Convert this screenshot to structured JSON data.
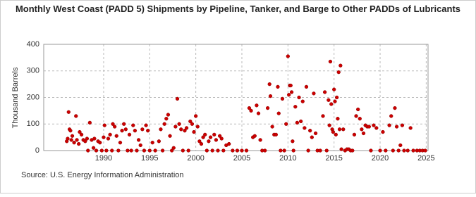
{
  "chart_data": {
    "type": "scatter",
    "title": "Monthly West Coast (PADD 5) Shipments by Pipeline, Tanker, and Barge to Other PADDs of Lubricants",
    "y_label": "Thousand Barrels",
    "source": "Source: U.S. Energy Information Administration",
    "xlim": [
      1983.5,
      2025.2
    ],
    "xticks": [
      1990,
      1995,
      2000,
      2005,
      2010,
      2015,
      2020,
      2025
    ],
    "ylim": [
      0,
      400
    ],
    "yticks": [
      0,
      100,
      200,
      300,
      400
    ],
    "grid": true,
    "x": [
      1986.0,
      1986.1,
      1986.2,
      1986.3,
      1986.4,
      1986.5,
      1986.6,
      1986.8,
      1987.0,
      1987.1,
      1987.3,
      1987.4,
      1987.6,
      1987.8,
      1988.0,
      1988.2,
      1988.3,
      1988.5,
      1988.7,
      1988.9,
      1989.0,
      1989.2,
      1989.4,
      1989.6,
      1989.8,
      1990.0,
      1990.1,
      1990.3,
      1990.5,
      1990.7,
      1990.9,
      1991.0,
      1991.2,
      1991.4,
      1991.6,
      1991.8,
      1992.0,
      1992.2,
      1992.4,
      1992.6,
      1992.8,
      1993.0,
      1993.2,
      1993.4,
      1993.6,
      1993.8,
      1994.0,
      1994.2,
      1994.4,
      1994.6,
      1994.8,
      1995.0,
      1995.3,
      1995.6,
      1996.0,
      1996.2,
      1996.4,
      1996.6,
      1996.8,
      1997.0,
      1997.2,
      1997.4,
      1997.6,
      1997.8,
      1998.0,
      1998.2,
      1998.4,
      1998.6,
      1998.8,
      1999.0,
      1999.2,
      1999.4,
      1999.6,
      1999.8,
      2000.0,
      2000.2,
      2000.4,
      2000.6,
      2000.8,
      2001.0,
      2001.2,
      2001.4,
      2001.6,
      2001.8,
      2002.0,
      2002.2,
      2002.4,
      2002.6,
      2002.8,
      2003.0,
      2003.3,
      2003.6,
      2004.0,
      2004.5,
      2005.0,
      2005.5,
      2005.8,
      2006.0,
      2006.2,
      2006.4,
      2006.6,
      2006.8,
      2007.0,
      2007.2,
      2007.5,
      2007.8,
      2008.0,
      2008.1,
      2008.3,
      2008.5,
      2008.7,
      2008.9,
      2009.0,
      2009.2,
      2009.4,
      2009.6,
      2009.8,
      2010.0,
      2010.1,
      2010.2,
      2010.3,
      2010.4,
      2010.5,
      2010.6,
      2010.8,
      2011.0,
      2011.2,
      2011.4,
      2011.6,
      2011.8,
      2012.0,
      2012.2,
      2012.4,
      2012.6,
      2012.8,
      2013.0,
      2013.2,
      2013.5,
      2013.8,
      2014.0,
      2014.2,
      2014.4,
      2014.5,
      2014.6,
      2014.7,
      2014.8,
      2014.9,
      2015.0,
      2015.1,
      2015.2,
      2015.3,
      2015.4,
      2015.5,
      2015.6,
      2015.7,
      2015.8,
      2016.0,
      2016.2,
      2016.4,
      2016.6,
      2016.8,
      2017.0,
      2017.2,
      2017.4,
      2017.6,
      2017.8,
      2018.0,
      2018.2,
      2018.4,
      2018.6,
      2018.8,
      2019.0,
      2019.3,
      2019.6,
      2020.0,
      2020.3,
      2020.6,
      2021.0,
      2021.2,
      2021.4,
      2021.6,
      2021.8,
      2022.0,
      2022.2,
      2022.4,
      2022.6,
      2023.0,
      2023.3,
      2023.6,
      2024.0,
      2024.3,
      2024.6,
      2024.9
    ],
    "series": [
      {
        "color": "#cc0000",
        "values": [
          35,
          45,
          145,
          80,
          75,
          40,
          55,
          30,
          130,
          40,
          25,
          70,
          60,
          40,
          35,
          45,
          0,
          105,
          40,
          10,
          45,
          0,
          35,
          30,
          0,
          50,
          95,
          0,
          45,
          60,
          0,
          100,
          90,
          55,
          0,
          30,
          75,
          100,
          80,
          0,
          60,
          0,
          95,
          75,
          0,
          40,
          20,
          80,
          0,
          95,
          75,
          0,
          30,
          0,
          35,
          80,
          0,
          100,
          120,
          135,
          55,
          0,
          10,
          90,
          195,
          100,
          80,
          0,
          75,
          85,
          0,
          110,
          100,
          70,
          130,
          90,
          35,
          25,
          50,
          60,
          0,
          35,
          50,
          0,
          60,
          40,
          0,
          55,
          45,
          0,
          20,
          25,
          0,
          0,
          0,
          0,
          160,
          150,
          50,
          55,
          170,
          140,
          40,
          0,
          0,
          160,
          250,
          205,
          90,
          60,
          60,
          240,
          140,
          0,
          195,
          0,
          100,
          355,
          210,
          245,
          245,
          220,
          35,
          0,
          165,
          105,
          200,
          110,
          185,
          85,
          240,
          0,
          75,
          50,
          215,
          65,
          0,
          0,
          130,
          220,
          0,
          190,
          95,
          335,
          175,
          80,
          70,
          230,
          185,
          60,
          200,
          120,
          295,
          80,
          320,
          5,
          80,
          0,
          5,
          5,
          0,
          0,
          60,
          130,
          155,
          120,
          80,
          65,
          95,
          90,
          90,
          0,
          95,
          85,
          0,
          70,
          0,
          95,
          130,
          0,
          160,
          90,
          0,
          20,
          95,
          0,
          0,
          85,
          0,
          0,
          0,
          0,
          0
        ]
      }
    ]
  }
}
